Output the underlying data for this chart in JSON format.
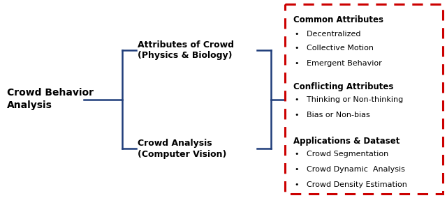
{
  "bg_color": "#ffffff",
  "left_label": "Crowd Behavior\nAnalysis",
  "mid_labels": [
    "Attributes of Crowd\n(Physics & Biology)",
    "Crowd Analysis\n(Computer Vision)"
  ],
  "box_sections": [
    {
      "header": "Common Attributes",
      "bullets": [
        "Decentralized",
        "Collective Motion",
        "Emergent Behavior"
      ]
    },
    {
      "header": "Conflicting Attributes",
      "bullets": [
        "Thinking or Non-thinking",
        "Bias or Non-bias"
      ]
    },
    {
      "header": "Applications & Dataset",
      "bullets": [
        "Crowd Segmentation",
        "Crowd Dynamic  Analysis",
        "Crowd Density Estimation"
      ]
    }
  ],
  "blue_color": "#1F3D7A",
  "red_color": "#CC0000",
  "text_color": "#000000",
  "figsize": [
    6.4,
    2.84
  ],
  "dpi": 100
}
